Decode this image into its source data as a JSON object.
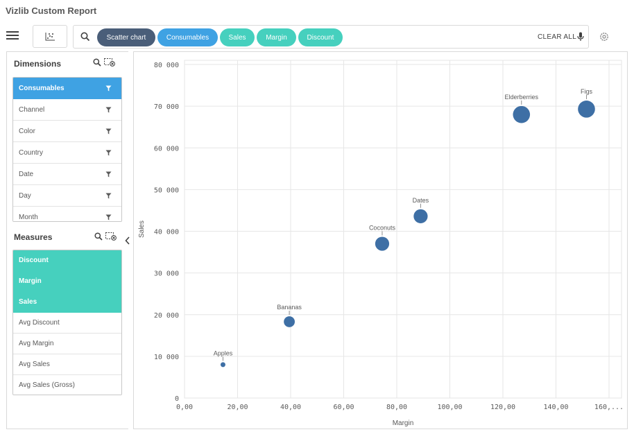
{
  "app": {
    "title": "Vizlib Custom Report"
  },
  "toolbar": {
    "menu_icon": "hamburger-menu-icon",
    "chart_type_icon": "scatter-chart-icon",
    "search_icon": "search-icon",
    "pills": [
      {
        "label": "Scatter chart",
        "color": "#4a5e79"
      },
      {
        "label": "Consumables",
        "color": "#3fa2e3"
      },
      {
        "label": "Sales",
        "color": "#46d0be"
      },
      {
        "label": "Margin",
        "color": "#46d0be"
      },
      {
        "label": "Discount",
        "color": "#46d0be"
      }
    ],
    "clear_all_label": "CLEAR ALL",
    "mic_icon": "microphone-icon",
    "settings_icon": "gear-icon"
  },
  "dimensions": {
    "title": "Dimensions",
    "items": [
      {
        "label": "Consumables",
        "selected": true
      },
      {
        "label": "Channel",
        "selected": false
      },
      {
        "label": "Color",
        "selected": false
      },
      {
        "label": "Country",
        "selected": false
      },
      {
        "label": "Date",
        "selected": false
      },
      {
        "label": "Day",
        "selected": false
      },
      {
        "label": "Month",
        "selected": false
      }
    ]
  },
  "measures": {
    "title": "Measures",
    "items": [
      {
        "label": "Discount",
        "selected": true
      },
      {
        "label": "Margin",
        "selected": true
      },
      {
        "label": "Sales",
        "selected": true
      },
      {
        "label": "Avg Discount",
        "selected": false
      },
      {
        "label": "Avg Margin",
        "selected": false
      },
      {
        "label": "Avg Sales",
        "selected": false
      },
      {
        "label": "Avg Sales (Gross)",
        "selected": false
      }
    ]
  },
  "chart_data": {
    "type": "scatter",
    "xlabel": "Margin",
    "ylabel": "Sales",
    "xlim": [
      0,
      160
    ],
    "ylim": [
      0,
      80000
    ],
    "x_ticks": [
      "0,00",
      "20,00",
      "40,00",
      "60,00",
      "80,00",
      "100,00",
      "120,00",
      "140,00",
      "160,..."
    ],
    "y_ticks": [
      "0",
      "10 000",
      "20 000",
      "30 000",
      "40 000",
      "50 000",
      "60 000",
      "70 000",
      "80 000"
    ],
    "grid": true,
    "color": "#3e6fa5",
    "points": [
      {
        "label": "Apples",
        "x": 14.5,
        "y": 8000,
        "size": 1
      },
      {
        "label": "Bananas",
        "x": 39.5,
        "y": 18300,
        "size": 3
      },
      {
        "label": "Coconuts",
        "x": 74.5,
        "y": 37000,
        "size": 4
      },
      {
        "label": "Dates",
        "x": 89,
        "y": 43600,
        "size": 4
      },
      {
        "label": "Elderberries",
        "x": 127,
        "y": 68000,
        "size": 5
      },
      {
        "label": "Figs",
        "x": 151.5,
        "y": 69300,
        "size": 5
      }
    ]
  }
}
